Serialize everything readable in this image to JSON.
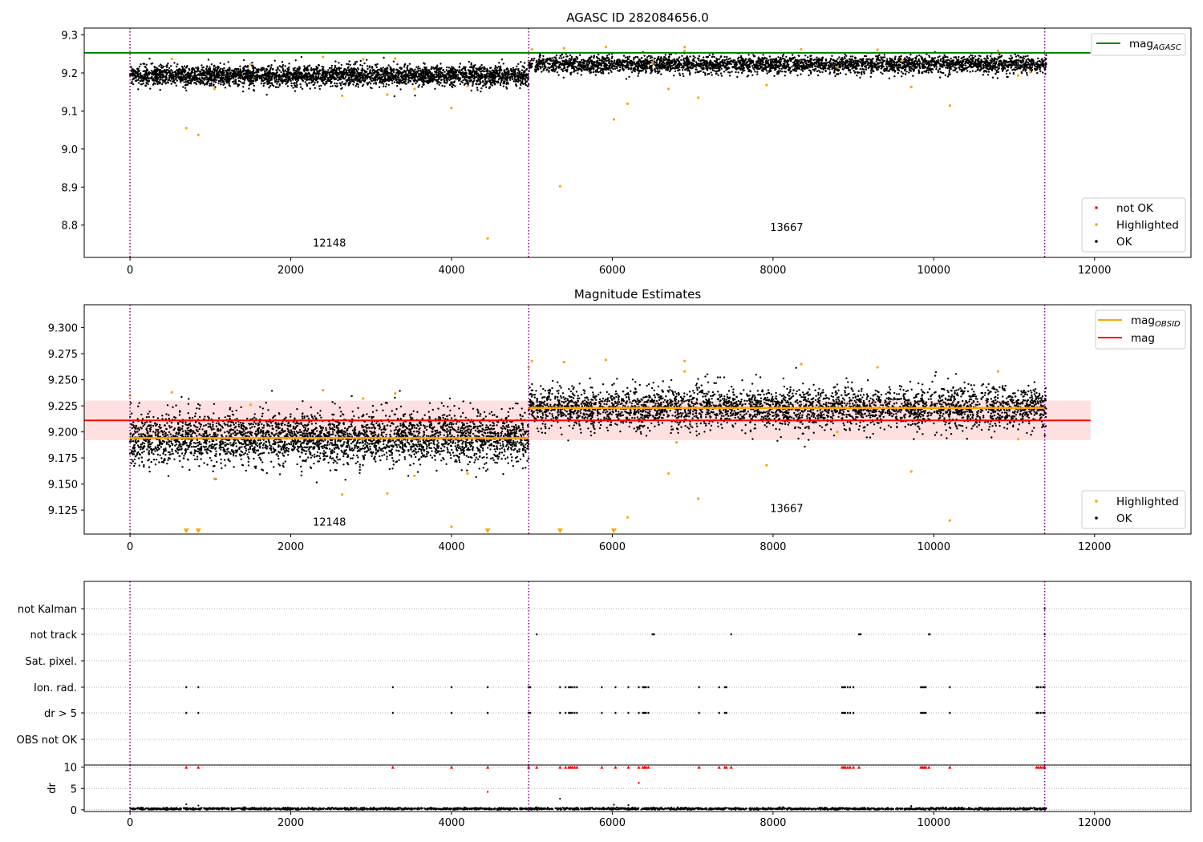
{
  "figure": {
    "background": "#ffffff"
  },
  "colors": {
    "ok": "#000000",
    "highlighted": "#ffa500",
    "not_ok": "#ff0000",
    "agasc_line": "#008000",
    "mag_line": "#ff0000",
    "obsid_line": "#ffa500",
    "band": "#ffdddd",
    "obsid_boundary": "#800080",
    "grid": "#b0b0b0"
  },
  "chart_data": [
    {
      "type": "scatter",
      "title": "AGASC ID 282084656.0",
      "xlim": [
        -570,
        13200
      ],
      "ylim": [
        8.715,
        9.318
      ],
      "xticks": [
        0,
        2000,
        4000,
        6000,
        8000,
        10000,
        12000
      ],
      "yticks": [
        8.8,
        8.9,
        9.0,
        9.1,
        9.2,
        9.3
      ],
      "ytick_labels": [
        "8.8",
        "8.9",
        "9.0",
        "9.1",
        "9.2",
        "9.3"
      ],
      "obsid_boundaries": [
        0,
        4960,
        11380
      ],
      "obsid_labels": [
        {
          "text": "12148",
          "x": 2480,
          "y": 8.743
        },
        {
          "text": "13667",
          "x": 8170,
          "y": 8.785
        }
      ],
      "mag_agasc": 9.253,
      "mag_agasc_xrange": [
        -570,
        11950
      ],
      "ok_segments": [
        {
          "x0": 0,
          "x1": 4960,
          "center": 9.193,
          "spread": 0.013
        },
        {
          "x0": 4960,
          "x1": 11400,
          "center": 9.222,
          "spread": 0.011
        }
      ],
      "highlighted_points": [
        [
          700,
          9.055
        ],
        [
          850,
          9.037
        ],
        [
          1050,
          9.158
        ],
        [
          2640,
          9.14
        ],
        [
          3200,
          9.143
        ],
        [
          4000,
          9.108
        ],
        [
          4450,
          8.765
        ],
        [
          5350,
          8.902
        ],
        [
          6020,
          9.078
        ],
        [
          6190,
          9.119
        ],
        [
          6700,
          9.158
        ],
        [
          7070,
          9.135
        ],
        [
          7920,
          9.168
        ],
        [
          9720,
          9.163
        ],
        [
          10200,
          9.114
        ],
        [
          11050,
          9.193
        ],
        [
          520,
          9.237
        ],
        [
          2400,
          9.242
        ],
        [
          2900,
          9.236
        ],
        [
          3300,
          9.238
        ],
        [
          4960,
          9.232
        ],
        [
          5000,
          9.262
        ],
        [
          5400,
          9.265
        ],
        [
          5920,
          9.268
        ],
        [
          6900,
          9.268
        ],
        [
          6900,
          9.258
        ],
        [
          8350,
          9.262
        ],
        [
          9300,
          9.261
        ],
        [
          10800,
          9.258
        ],
        [
          3540,
          9.158
        ],
        [
          6500,
          9.225
        ],
        [
          8800,
          9.215
        ],
        [
          9600,
          9.232
        ],
        [
          11200,
          9.202
        ],
        [
          1500,
          9.223
        ],
        [
          4200,
          9.165
        ]
      ],
      "legends": [
        {
          "placement": "top-right",
          "entries": [
            {
              "label": "mag",
              "subscript": "AGASC",
              "marker": "line",
              "color": "#008000"
            }
          ]
        },
        {
          "placement": "lower-right",
          "entries": [
            {
              "label": "not OK",
              "marker": "dot",
              "color": "#ff0000"
            },
            {
              "label": "Highlighted",
              "marker": "dot",
              "color": "#ffa500"
            },
            {
              "label": "OK",
              "marker": "dot",
              "color": "#000000"
            }
          ]
        }
      ]
    },
    {
      "type": "scatter",
      "title": "Magnitude Estimates",
      "xlim": [
        -570,
        13200
      ],
      "ylim": [
        9.102,
        9.322
      ],
      "xticks": [
        0,
        2000,
        4000,
        6000,
        8000,
        10000,
        12000
      ],
      "yticks": [
        9.125,
        9.15,
        9.175,
        9.2,
        9.225,
        9.25,
        9.275,
        9.3
      ],
      "ytick_labels": [
        "9.125",
        "9.150",
        "9.175",
        "9.200",
        "9.225",
        "9.250",
        "9.275",
        "9.300"
      ],
      "obsid_boundaries": [
        0,
        4960,
        11380
      ],
      "obsid_labels": [
        {
          "text": "12148",
          "x": 2480,
          "y": 9.11
        },
        {
          "text": "13667",
          "x": 8170,
          "y": 9.123
        }
      ],
      "mag": 9.211,
      "mag_band": [
        9.192,
        9.23
      ],
      "mag_xrange": [
        -570,
        11950
      ],
      "mag_obsid": [
        {
          "x0": 0,
          "x1": 4960,
          "value": 9.194
        },
        {
          "x0": 4960,
          "x1": 11380,
          "value": 9.223
        }
      ],
      "ok_segments": [
        {
          "x0": 0,
          "x1": 4960,
          "center": 9.194,
          "spread": 0.012
        },
        {
          "x0": 4960,
          "x1": 11400,
          "center": 9.223,
          "spread": 0.01
        }
      ],
      "highlighted_points": [
        [
          0,
          9.235
        ],
        [
          520,
          9.238
        ],
        [
          1050,
          9.155
        ],
        [
          2400,
          9.24
        ],
        [
          2640,
          9.14
        ],
        [
          2900,
          9.232
        ],
        [
          3200,
          9.141
        ],
        [
          3300,
          9.237
        ],
        [
          3540,
          9.158
        ],
        [
          4000,
          9.109
        ],
        [
          4200,
          9.16
        ],
        [
          4960,
          9.262
        ],
        [
          5000,
          9.268
        ],
        [
          5400,
          9.267
        ],
        [
          5920,
          9.269
        ],
        [
          6020,
          9.106
        ],
        [
          6190,
          9.118
        ],
        [
          6700,
          9.16
        ],
        [
          6900,
          9.268
        ],
        [
          6900,
          9.258
        ],
        [
          7070,
          9.136
        ],
        [
          7920,
          9.168
        ],
        [
          8350,
          9.265
        ],
        [
          9300,
          9.262
        ],
        [
          9720,
          9.162
        ],
        [
          10200,
          9.115
        ],
        [
          10800,
          9.258
        ],
        [
          11050,
          9.193
        ],
        [
          1500,
          9.226
        ],
        [
          6800,
          9.19
        ],
        [
          8800,
          9.2
        ]
      ],
      "clipped_points": [
        700,
        850,
        4450,
        5350,
        6020
      ],
      "legends": [
        {
          "placement": "top-right",
          "entries": [
            {
              "label": "mag",
              "subscript": "OBSID",
              "marker": "line",
              "color": "#ffa500"
            },
            {
              "label": "mag",
              "marker": "line",
              "color": "#ff0000"
            }
          ]
        },
        {
          "placement": "lower-right",
          "entries": [
            {
              "label": "Highlighted",
              "marker": "dot",
              "color": "#ffa500"
            },
            {
              "label": "OK",
              "marker": "dot",
              "color": "#000000"
            }
          ]
        }
      ]
    },
    {
      "type": "scatter",
      "title": "",
      "xlim": [
        -570,
        13200
      ],
      "flag_rows": [
        "not Kalman",
        "not track",
        "Sat. pixel.",
        "Ion. rad.",
        "dr > 5",
        "OBS not OK"
      ],
      "flags": {
        "not Kalman": [
          11380
        ],
        "not track": [
          5060,
          6500,
          6520,
          7480,
          9070,
          9090,
          9940,
          9950,
          11380
        ],
        "Sat. pixel.": [],
        "Ion. rad.": [
          700,
          850,
          3270,
          4000,
          4450,
          4960,
          4980,
          5350,
          5420,
          5460,
          5480,
          5500,
          5530,
          5560,
          5870,
          6040,
          6200,
          6330,
          6380,
          6400,
          6420,
          6450,
          7080,
          7330,
          7400,
          7420,
          8860,
          8880,
          8900,
          8930,
          8960,
          9000,
          9840,
          9860,
          9880,
          9900,
          10200,
          11280,
          11300,
          11330,
          11360,
          11380
        ],
        "dr > 5": [
          700,
          850,
          3270,
          4000,
          4450,
          4960,
          4980,
          5350,
          5420,
          5460,
          5480,
          5500,
          5530,
          5560,
          5870,
          6040,
          6200,
          6330,
          6380,
          6400,
          6420,
          6450,
          7080,
          7330,
          7400,
          7420,
          8860,
          8880,
          8900,
          8930,
          8960,
          9000,
          9840,
          9860,
          9880,
          9900,
          10200,
          11280,
          11300,
          11330,
          11360,
          11380
        ],
        "OBS not OK": []
      },
      "obsid_boundaries": [
        0,
        4960,
        11380
      ]
    },
    {
      "type": "scatter",
      "title": "",
      "xlim": [
        -570,
        13200
      ],
      "ylim": [
        -0.4,
        10.5
      ],
      "ylabel": "dr",
      "xticks": [
        0,
        2000,
        4000,
        6000,
        8000,
        10000,
        12000
      ],
      "yticks": [
        0,
        5,
        10
      ],
      "ytick_labels": [
        "0",
        "5",
        "10"
      ],
      "obsid_boundaries": [
        0,
        4960,
        11380
      ],
      "dr_baseline": 0.25,
      "outliers": [
        [
          700,
          1.3
        ],
        [
          850,
          1.0
        ],
        [
          5350,
          2.6
        ],
        [
          6020,
          1.2
        ],
        [
          6330,
          6.3
        ],
        [
          6200,
          1.1
        ],
        [
          9720,
          0.9
        ]
      ],
      "not_ok_clipped": [
        700,
        850,
        3270,
        4000,
        4450,
        4960,
        5060,
        5350,
        5420,
        5460,
        5480,
        5500,
        5530,
        5560,
        5870,
        6040,
        6200,
        6330,
        6380,
        6400,
        6420,
        6450,
        7080,
        7330,
        7400,
        7420,
        7480,
        8860,
        8880,
        8900,
        8930,
        8960,
        9000,
        9070,
        9840,
        9860,
        9880,
        9900,
        9940,
        10200,
        11280,
        11300,
        11330,
        11360,
        11380
      ],
      "not_ok_points": [
        [
          4450,
          4.2
        ],
        [
          6330,
          6.3
        ]
      ]
    }
  ]
}
